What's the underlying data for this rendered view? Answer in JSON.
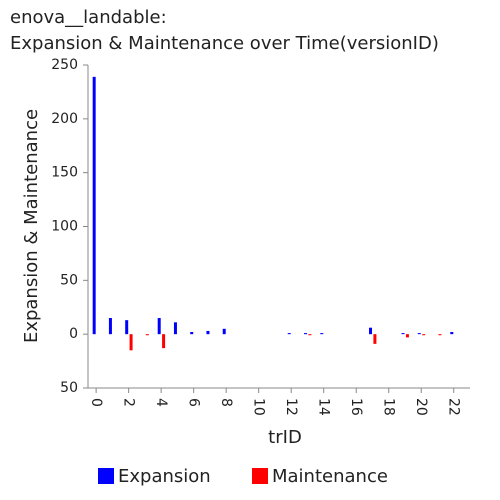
{
  "chart_data": {
    "type": "bar",
    "title": [
      "enova__landable:",
      "Expansion & Maintenance over Time(versionID)"
    ],
    "x_label": "trID",
    "y_label": "Expansion & Maintenance",
    "x": [
      0,
      1,
      2,
      3,
      4,
      5,
      6,
      7,
      8,
      9,
      10,
      11,
      12,
      13,
      14,
      15,
      16,
      17,
      18,
      19,
      20,
      21,
      22
    ],
    "series": [
      {
        "name": "Expansion",
        "color": "#0000ff",
        "values": [
          239,
          15,
          13,
          0,
          15,
          11,
          2,
          3,
          5,
          0,
          0,
          0,
          1,
          1,
          1,
          0,
          0,
          6,
          0,
          1,
          1,
          0,
          2
        ]
      },
      {
        "name": "Maintenance",
        "color": "#ff0000",
        "values": [
          0,
          0,
          -15,
          -1,
          -13,
          0,
          0,
          0,
          0,
          0,
          0,
          0,
          0,
          -1,
          0,
          0,
          0,
          -9,
          0,
          -3,
          -1,
          -1,
          0
        ]
      }
    ],
    "xlim": [
      -0.5,
      23
    ],
    "xticks": [
      0,
      2,
      4,
      6,
      8,
      10,
      12,
      14,
      16,
      18,
      20,
      22
    ],
    "ylim": [
      -50,
      250
    ],
    "yticks": [
      {
        "value": -50,
        "label": "50"
      },
      0,
      50,
      100,
      150,
      200,
      250
    ],
    "legend": "bottom"
  }
}
